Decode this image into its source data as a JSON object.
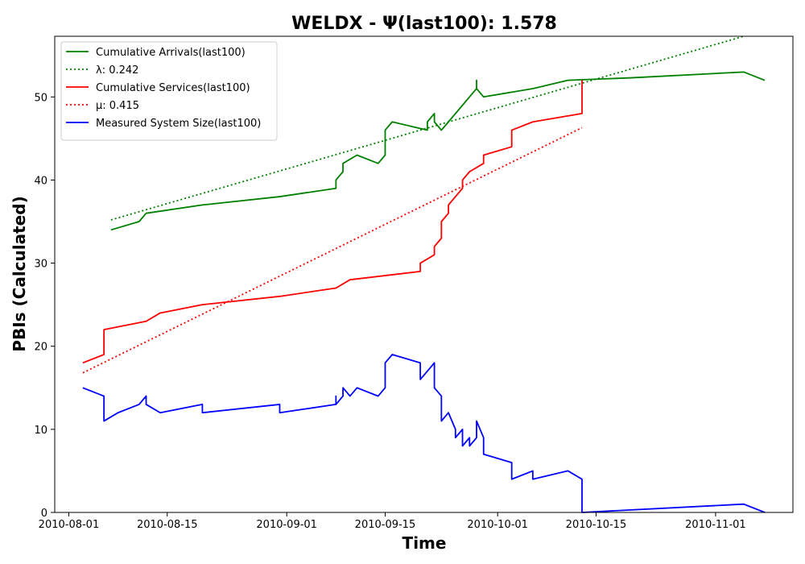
{
  "chart_data": {
    "type": "line",
    "title": "WELDX -  Ψ(last100): 1.578",
    "xlabel": "Time",
    "ylabel": "PBIs (Calculated)",
    "xlim": [
      "2010-07-30",
      "2010-11-12"
    ],
    "ylim": [
      0,
      57.3
    ],
    "xticks": [
      "2010-08-01",
      "2010-08-15",
      "2010-09-01",
      "2010-09-15",
      "2010-10-01",
      "2010-10-15",
      "2010-11-01"
    ],
    "yticks": [
      0,
      10,
      20,
      30,
      40,
      50
    ],
    "legend_position": "top-left",
    "series": [
      {
        "name": "Cumulative Arrivals(last100)",
        "color": "#008000",
        "style": "solid",
        "points": [
          [
            "2010-08-07",
            34
          ],
          [
            "2010-08-11",
            35
          ],
          [
            "2010-08-12",
            36
          ],
          [
            "2010-08-20",
            37
          ],
          [
            "2010-08-31",
            38
          ],
          [
            "2010-09-08",
            39
          ],
          [
            "2010-09-08",
            40
          ],
          [
            "2010-09-09",
            41
          ],
          [
            "2010-09-09",
            42
          ],
          [
            "2010-09-11",
            43
          ],
          [
            "2010-09-14",
            42
          ],
          [
            "2010-09-15",
            43
          ],
          [
            "2010-09-15",
            46
          ],
          [
            "2010-09-16",
            47
          ],
          [
            "2010-09-21",
            46
          ],
          [
            "2010-09-21",
            47
          ],
          [
            "2010-09-22",
            48
          ],
          [
            "2010-09-22",
            47
          ],
          [
            "2010-09-23",
            46
          ],
          [
            "2010-09-24",
            47
          ],
          [
            "2010-09-25",
            48
          ],
          [
            "2010-09-26",
            49
          ],
          [
            "2010-09-27",
            50
          ],
          [
            "2010-09-28",
            51
          ],
          [
            "2010-09-28",
            52
          ],
          [
            "2010-09-28",
            51
          ],
          [
            "2010-09-29",
            50
          ],
          [
            "2010-10-06",
            51
          ],
          [
            "2010-10-11",
            52
          ],
          [
            "2010-10-20",
            52.3
          ],
          [
            "2010-11-05",
            53
          ],
          [
            "2010-11-08",
            52
          ]
        ]
      },
      {
        "name": "λ: 0.242",
        "color": "#008000",
        "style": "dotted",
        "points": [
          [
            "2010-08-07",
            35.2
          ],
          [
            "2010-11-05",
            57.3
          ]
        ]
      },
      {
        "name": "Cumulative Services(last100)",
        "color": "#ff0000",
        "style": "solid",
        "points": [
          [
            "2010-08-03",
            18
          ],
          [
            "2010-08-06",
            19
          ],
          [
            "2010-08-06",
            22
          ],
          [
            "2010-08-12",
            23
          ],
          [
            "2010-08-14",
            24
          ],
          [
            "2010-08-20",
            25
          ],
          [
            "2010-08-31",
            26
          ],
          [
            "2010-09-08",
            27
          ],
          [
            "2010-09-10",
            28
          ],
          [
            "2010-09-20",
            29
          ],
          [
            "2010-09-20",
            30
          ],
          [
            "2010-09-22",
            31
          ],
          [
            "2010-09-22",
            32
          ],
          [
            "2010-09-23",
            33
          ],
          [
            "2010-09-23",
            35
          ],
          [
            "2010-09-24",
            36
          ],
          [
            "2010-09-24",
            37
          ],
          [
            "2010-09-25",
            38
          ],
          [
            "2010-09-26",
            39
          ],
          [
            "2010-09-26",
            40
          ],
          [
            "2010-09-27",
            41
          ],
          [
            "2010-09-29",
            42
          ],
          [
            "2010-09-29",
            43
          ],
          [
            "2010-10-03",
            44
          ],
          [
            "2010-10-03",
            46
          ],
          [
            "2010-10-06",
            47
          ],
          [
            "2010-10-13",
            48
          ],
          [
            "2010-10-13",
            49
          ],
          [
            "2010-10-13",
            52
          ]
        ]
      },
      {
        "name": "μ: 0.415",
        "color": "#ff0000",
        "style": "dotted",
        "points": [
          [
            "2010-08-03",
            16.8
          ],
          [
            "2010-10-13",
            46.3
          ]
        ]
      },
      {
        "name": "Measured System Size(last100)",
        "color": "#0000ff",
        "style": "solid",
        "points": [
          [
            "2010-08-03",
            15
          ],
          [
            "2010-08-06",
            14
          ],
          [
            "2010-08-06",
            11
          ],
          [
            "2010-08-08",
            12
          ],
          [
            "2010-08-11",
            13
          ],
          [
            "2010-08-12",
            14
          ],
          [
            "2010-08-12",
            13
          ],
          [
            "2010-08-14",
            12
          ],
          [
            "2010-08-20",
            13
          ],
          [
            "2010-08-20",
            12
          ],
          [
            "2010-08-31",
            13
          ],
          [
            "2010-08-31",
            12
          ],
          [
            "2010-09-08",
            13
          ],
          [
            "2010-09-08",
            14
          ],
          [
            "2010-09-08",
            13
          ],
          [
            "2010-09-09",
            14
          ],
          [
            "2010-09-09",
            15
          ],
          [
            "2010-09-10",
            14
          ],
          [
            "2010-09-11",
            15
          ],
          [
            "2010-09-14",
            14
          ],
          [
            "2010-09-15",
            15
          ],
          [
            "2010-09-15",
            18
          ],
          [
            "2010-09-16",
            19
          ],
          [
            "2010-09-20",
            18
          ],
          [
            "2010-09-20",
            16
          ],
          [
            "2010-09-21",
            17
          ],
          [
            "2010-09-22",
            18
          ],
          [
            "2010-09-22",
            15
          ],
          [
            "2010-09-23",
            14
          ],
          [
            "2010-09-23",
            11
          ],
          [
            "2010-09-24",
            12
          ],
          [
            "2010-09-25",
            10
          ],
          [
            "2010-09-25",
            9
          ],
          [
            "2010-09-26",
            10
          ],
          [
            "2010-09-26",
            8
          ],
          [
            "2010-09-27",
            9
          ],
          [
            "2010-09-27",
            8
          ],
          [
            "2010-09-28",
            9
          ],
          [
            "2010-09-28",
            11
          ],
          [
            "2010-09-29",
            9
          ],
          [
            "2010-09-29",
            7
          ],
          [
            "2010-10-03",
            6
          ],
          [
            "2010-10-03",
            4
          ],
          [
            "2010-10-06",
            5
          ],
          [
            "2010-10-06",
            4
          ],
          [
            "2010-10-11",
            5
          ],
          [
            "2010-10-13",
            4
          ],
          [
            "2010-10-13",
            3
          ],
          [
            "2010-10-13",
            0
          ],
          [
            "2010-11-05",
            1
          ],
          [
            "2010-11-08",
            0
          ]
        ]
      }
    ]
  }
}
